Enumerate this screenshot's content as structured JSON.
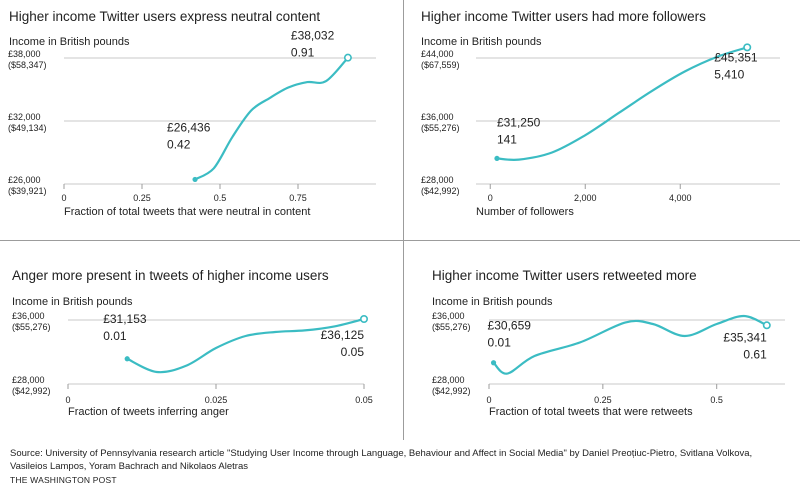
{
  "colors": {
    "line": "#3bbcc3",
    "grid": "#c8c8c8",
    "text": "#222222",
    "axis": "#9c9c9c"
  },
  "source_text": "Source: University of Pennsylvania research article \"Studying User Income through Language, Behaviour and Affect in Social Media\" by Daniel Preoțiuc-Pietro, Svitlana Volkova, Vasileios Lampos, Yoram Bachrach and Nikolaos Aletras",
  "credit": "THE WASHINGTON POST",
  "chart_data": [
    {
      "type": "line",
      "title": "Higher income Twitter users express neutral content",
      "ylabel": "Income in British pounds",
      "xlabel": "Fraction of total tweets that were neutral in content",
      "ylim": [
        26000,
        38000
      ],
      "xlim": [
        0,
        1
      ],
      "yticks": [
        {
          "value": 38000,
          "label": "£38,000",
          "sublabel": "($58,347)"
        },
        {
          "value": 32000,
          "label": "£32,000",
          "sublabel": "($49,134)"
        },
        {
          "value": 26000,
          "label": "£26,000",
          "sublabel": "($39,921)"
        }
      ],
      "xticks": [
        {
          "value": 0,
          "label": "0"
        },
        {
          "value": 0.25,
          "label": "0.25"
        },
        {
          "value": 0.5,
          "label": "0.5"
        },
        {
          "value": 0.75,
          "label": "0.75"
        }
      ],
      "series": [
        {
          "x": [
            0.42,
            0.48,
            0.54,
            0.6,
            0.66,
            0.72,
            0.78,
            0.84,
            0.91
          ],
          "y": [
            26436,
            27500,
            30500,
            33000,
            34200,
            35200,
            35700,
            35800,
            38032
          ]
        }
      ],
      "annotations": [
        {
          "x": 0.42,
          "y": 26436,
          "label": "£26,436",
          "sublabel": "0.42",
          "marker": "filled"
        },
        {
          "x": 0.91,
          "y": 38032,
          "label": "£38,032",
          "sublabel": "0.91",
          "marker": "open"
        }
      ]
    },
    {
      "type": "line",
      "title": "Higher income Twitter users had more followers",
      "ylabel": "Income in British pounds",
      "xlabel": "Number of followers",
      "ylim": [
        28000,
        44000
      ],
      "xlim": [
        -300,
        6100
      ],
      "yticks": [
        {
          "value": 44000,
          "label": "£44,000",
          "sublabel": "($67,559)"
        },
        {
          "value": 36000,
          "label": "£36,000",
          "sublabel": "($55,276)"
        },
        {
          "value": 28000,
          "label": "£28,000",
          "sublabel": "($42,992)"
        }
      ],
      "xticks": [
        {
          "value": 0,
          "label": "0"
        },
        {
          "value": 2000,
          "label": "2,000"
        },
        {
          "value": 4000,
          "label": "4,000"
        }
      ],
      "series": [
        {
          "x": [
            141,
            600,
            1300,
            2000,
            2700,
            3400,
            4100,
            4800,
            5410
          ],
          "y": [
            31250,
            31100,
            32000,
            34200,
            37000,
            39800,
            42300,
            44200,
            45351
          ]
        }
      ],
      "annotations": [
        {
          "x": 141,
          "y": 31250,
          "label": "£31,250",
          "sublabel": "141",
          "marker": "filled"
        },
        {
          "x": 5410,
          "y": 45351,
          "label": "£45,351",
          "sublabel": "5,410",
          "marker": "open"
        }
      ]
    },
    {
      "type": "line",
      "title": "Anger more present in tweets of higher income users",
      "ylabel": "Income in British pounds",
      "xlabel": "Fraction of tweets inferring anger",
      "ylim": [
        28000,
        36000
      ],
      "xlim": [
        0,
        0.05
      ],
      "yticks": [
        {
          "value": 36000,
          "label": "£36,000",
          "sublabel": "($55,276)"
        },
        {
          "value": 28000,
          "label": "£28,000",
          "sublabel": "($42,992)"
        }
      ],
      "xticks": [
        {
          "value": 0,
          "label": "0"
        },
        {
          "value": 0.025,
          "label": "0.025"
        },
        {
          "value": 0.05,
          "label": "0.05"
        }
      ],
      "series": [
        {
          "x": [
            0.01,
            0.015,
            0.02,
            0.025,
            0.03,
            0.035,
            0.04,
            0.045,
            0.05
          ],
          "y": [
            31153,
            29500,
            30300,
            32500,
            34000,
            34500,
            34700,
            35200,
            36125
          ]
        }
      ],
      "annotations": [
        {
          "x": 0.01,
          "y": 31153,
          "label": "£31,153",
          "sublabel": "0.01",
          "marker": "filled"
        },
        {
          "x": 0.05,
          "y": 36125,
          "label": "£36,125",
          "sublabel": "0.05",
          "marker": "open"
        }
      ]
    },
    {
      "type": "line",
      "title": "Higher income Twitter users retweeted more",
      "ylabel": "Income in British pounds",
      "xlabel": "Fraction of total tweets that were retweets",
      "ylim": [
        28000,
        36000
      ],
      "xlim": [
        0,
        0.65
      ],
      "yticks": [
        {
          "value": 36000,
          "label": "£36,000",
          "sublabel": "($55,276)"
        },
        {
          "value": 28000,
          "label": "£28,000",
          "sublabel": "($42,992)"
        }
      ],
      "xticks": [
        {
          "value": 0,
          "label": "0"
        },
        {
          "value": 0.25,
          "label": "0.25"
        },
        {
          "value": 0.5,
          "label": "0.5"
        }
      ],
      "series": [
        {
          "x": [
            0.01,
            0.04,
            0.1,
            0.2,
            0.3,
            0.36,
            0.43,
            0.5,
            0.56,
            0.61
          ],
          "y": [
            30659,
            29300,
            31500,
            33200,
            35700,
            35500,
            34000,
            35500,
            36500,
            35341
          ]
        }
      ],
      "annotations": [
        {
          "x": 0.01,
          "y": 30659,
          "label": "£30,659",
          "sublabel": "0.01",
          "marker": "filled"
        },
        {
          "x": 0.61,
          "y": 35341,
          "label": "£35,341",
          "sublabel": "0.61",
          "marker": "open"
        }
      ]
    }
  ]
}
